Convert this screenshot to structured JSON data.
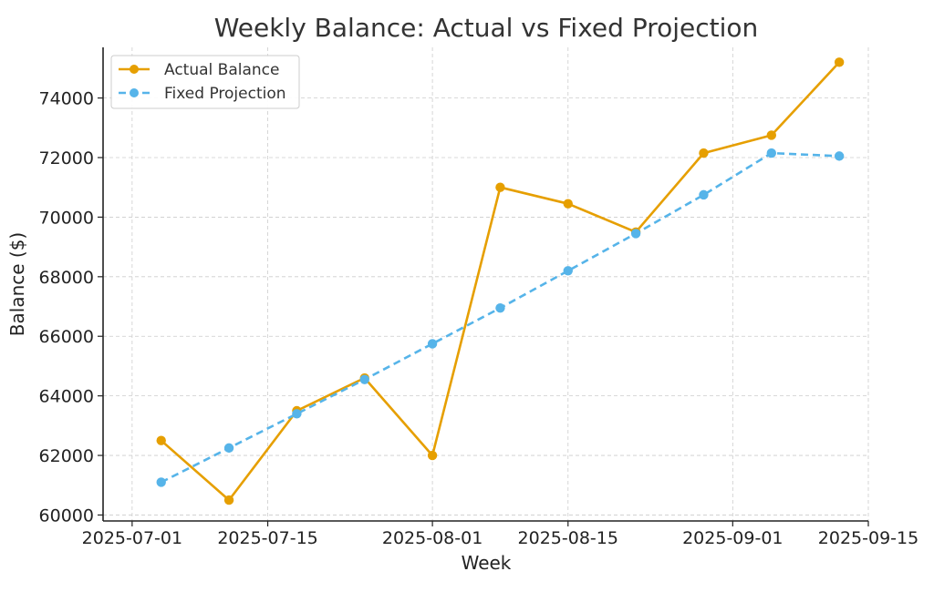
{
  "chart_data": {
    "type": "line",
    "title": "Weekly Balance: Actual vs Fixed Projection",
    "xlabel": "Week",
    "ylabel": "Balance ($)",
    "x": [
      "2025-07-04",
      "2025-07-11",
      "2025-07-18",
      "2025-07-25",
      "2025-08-01",
      "2025-08-08",
      "2025-08-15",
      "2025-08-22",
      "2025-08-29",
      "2025-09-05",
      "2025-09-12"
    ],
    "x_ticks": [
      "2025-07-01",
      "2025-07-15",
      "2025-08-01",
      "2025-08-15",
      "2025-09-01",
      "2025-09-15"
    ],
    "xlim": [
      "2025-06-28",
      "2025-09-15"
    ],
    "y_ticks": [
      60000,
      62000,
      64000,
      66000,
      68000,
      70000,
      72000,
      74000
    ],
    "ylim": [
      59800,
      75700
    ],
    "series": [
      {
        "name": "Actual Balance",
        "color": "#E69F00",
        "line_style": "solid",
        "values": [
          62500,
          60500,
          63500,
          64600,
          62000,
          71000,
          70450,
          69500,
          72150,
          72750,
          75200
        ]
      },
      {
        "name": "Fixed Projection",
        "color": "#56B4E9",
        "line_style": "dashed",
        "values": [
          61100,
          62250,
          63400,
          64550,
          65750,
          66950,
          68200,
          69450,
          70750,
          72150,
          72050
        ]
      }
    ],
    "grid": true,
    "legend": "top-left"
  }
}
